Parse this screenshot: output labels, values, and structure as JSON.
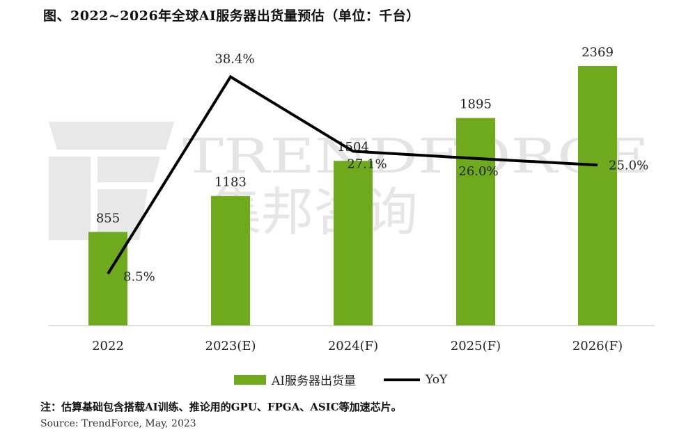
{
  "title": "图、2022~2026年全球AI服务器出货量预估（单位：千台）",
  "watermark": {
    "brand": "TRENDFORCE",
    "brand_cn": "集邦咨询"
  },
  "legend": {
    "bar_label": "AI服务器出货量",
    "line_label": "YoY",
    "placement": "bottom"
  },
  "footnote": "注：估算基础包含搭载AI训练、推论用的GPU、FPGA、ASIC等加速芯片。",
  "source": "Source: TrendForce, May, 2023",
  "colors": {
    "bar": "#6faa1e",
    "line": "#000000",
    "watermark": "#e6e6e6"
  },
  "chart_data": {
    "type": "bar",
    "categories": [
      "2022",
      "2023(E)",
      "2024(F)",
      "2025(F)",
      "2026(F)"
    ],
    "series": [
      {
        "name": "AI服务器出货量",
        "type": "bar",
        "values": [
          855,
          1183,
          1504,
          1895,
          2369
        ],
        "value_labels": [
          "855",
          "1183",
          "1504",
          "1895",
          "2369"
        ]
      },
      {
        "name": "YoY",
        "type": "line",
        "values": [
          8.5,
          38.4,
          27.1,
          26.0,
          25.0
        ],
        "value_labels": [
          "8.5%",
          "38.4%",
          "27.1%",
          "26.0%",
          "25.0%"
        ]
      }
    ],
    "ylim": [
      0,
      2500
    ],
    "y2lim": [
      0,
      45
    ],
    "grid": false
  }
}
